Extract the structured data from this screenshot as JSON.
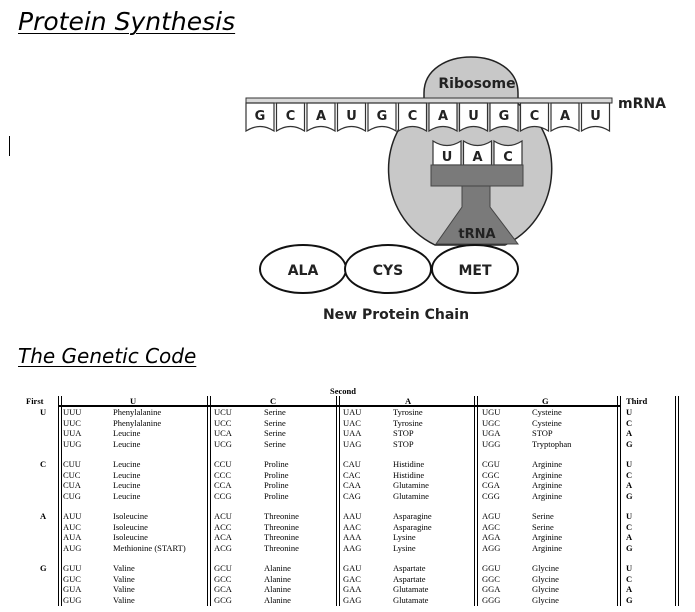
{
  "headings": {
    "protein_synthesis": "Protein Synthesis",
    "genetic_code": "The Genetic Code"
  },
  "diagram": {
    "ribosome_label": "Ribosome",
    "mrna_label": "mRNA",
    "trna_label": "tRNA",
    "mrna_bases": [
      "G",
      "C",
      "A",
      "U",
      "G",
      "C",
      "A",
      "U",
      "G",
      "C",
      "A",
      "U"
    ],
    "anticodon": [
      "U",
      "A",
      "C"
    ],
    "amino_acids": [
      "ALA",
      "CYS",
      "MET"
    ],
    "chain_label": "New Protein Chain",
    "colors": {
      "ribosome": "#c8c8c8",
      "trna": "#7a7a7a",
      "strand": "#d9d9d9"
    }
  },
  "genetic_code": {
    "second_header": "Second",
    "first_header": "First",
    "third_header": "Third",
    "columns": [
      "U",
      "C",
      "A",
      "G"
    ],
    "third_letters": [
      "U",
      "C",
      "A",
      "G"
    ],
    "groups": [
      {
        "first": "U",
        "rows": [
          [
            [
              "UUU",
              "Phenylalanine"
            ],
            [
              "UCU",
              "Serine"
            ],
            [
              "UAU",
              "Tyrosine"
            ],
            [
              "UGU",
              "Cysteine"
            ]
          ],
          [
            [
              "UUC",
              "Phenylalanine"
            ],
            [
              "UCC",
              "Serine"
            ],
            [
              "UAC",
              "Tyrosine"
            ],
            [
              "UGC",
              "Cysteine"
            ]
          ],
          [
            [
              "UUA",
              "Leucine"
            ],
            [
              "UCA",
              "Serine"
            ],
            [
              "UAA",
              "STOP"
            ],
            [
              "UGA",
              "STOP"
            ]
          ],
          [
            [
              "UUG",
              "Leucine"
            ],
            [
              "UCG",
              "Serine"
            ],
            [
              "UAG",
              "STOP"
            ],
            [
              "UGG",
              "Tryptophan"
            ]
          ]
        ]
      },
      {
        "first": "C",
        "rows": [
          [
            [
              "CUU",
              "Leucine"
            ],
            [
              "CCU",
              "Proline"
            ],
            [
              "CAU",
              "Histidine"
            ],
            [
              "CGU",
              "Arginine"
            ]
          ],
          [
            [
              "CUC",
              "Leucine"
            ],
            [
              "CCC",
              "Proline"
            ],
            [
              "CAC",
              "Histidine"
            ],
            [
              "CGC",
              "Arginine"
            ]
          ],
          [
            [
              "CUA",
              "Leucine"
            ],
            [
              "CCA",
              "Proline"
            ],
            [
              "CAA",
              "Glutamine"
            ],
            [
              "CGA",
              "Arginine"
            ]
          ],
          [
            [
              "CUG",
              "Leucine"
            ],
            [
              "CCG",
              "Proline"
            ],
            [
              "CAG",
              "Glutamine"
            ],
            [
              "CGG",
              "Arginine"
            ]
          ]
        ]
      },
      {
        "first": "A",
        "rows": [
          [
            [
              "AUU",
              "Isoleucine"
            ],
            [
              "ACU",
              "Threonine"
            ],
            [
              "AAU",
              "Asparagine"
            ],
            [
              "AGU",
              "Serine"
            ]
          ],
          [
            [
              "AUC",
              "Isoleucine"
            ],
            [
              "ACC",
              "Threonine"
            ],
            [
              "AAC",
              "Asparagine"
            ],
            [
              "AGC",
              "Serine"
            ]
          ],
          [
            [
              "AUA",
              "Isoleucine"
            ],
            [
              "ACA",
              "Threonine"
            ],
            [
              "AAA",
              "Lysine"
            ],
            [
              "AGA",
              "Arginine"
            ]
          ],
          [
            [
              "AUG",
              "Methionine (START)"
            ],
            [
              "ACG",
              "Threonine"
            ],
            [
              "AAG",
              "Lysine"
            ],
            [
              "AGG",
              "Arginine"
            ]
          ]
        ]
      },
      {
        "first": "G",
        "rows": [
          [
            [
              "GUU",
              "Valine"
            ],
            [
              "GCU",
              "Alanine"
            ],
            [
              "GAU",
              "Aspartate"
            ],
            [
              "GGU",
              "Glycine"
            ]
          ],
          [
            [
              "GUC",
              "Valine"
            ],
            [
              "GCC",
              "Alanine"
            ],
            [
              "GAC",
              "Aspartate"
            ],
            [
              "GGC",
              "Glycine"
            ]
          ],
          [
            [
              "GUA",
              "Valine"
            ],
            [
              "GCA",
              "Alanine"
            ],
            [
              "GAA",
              "Glutamate"
            ],
            [
              "GGA",
              "Glycine"
            ]
          ],
          [
            [
              "GUG",
              "Valine"
            ],
            [
              "GCG",
              "Alanine"
            ],
            [
              "GAG",
              "Glutamate"
            ],
            [
              "GGG",
              "Glycine"
            ]
          ]
        ]
      }
    ]
  }
}
